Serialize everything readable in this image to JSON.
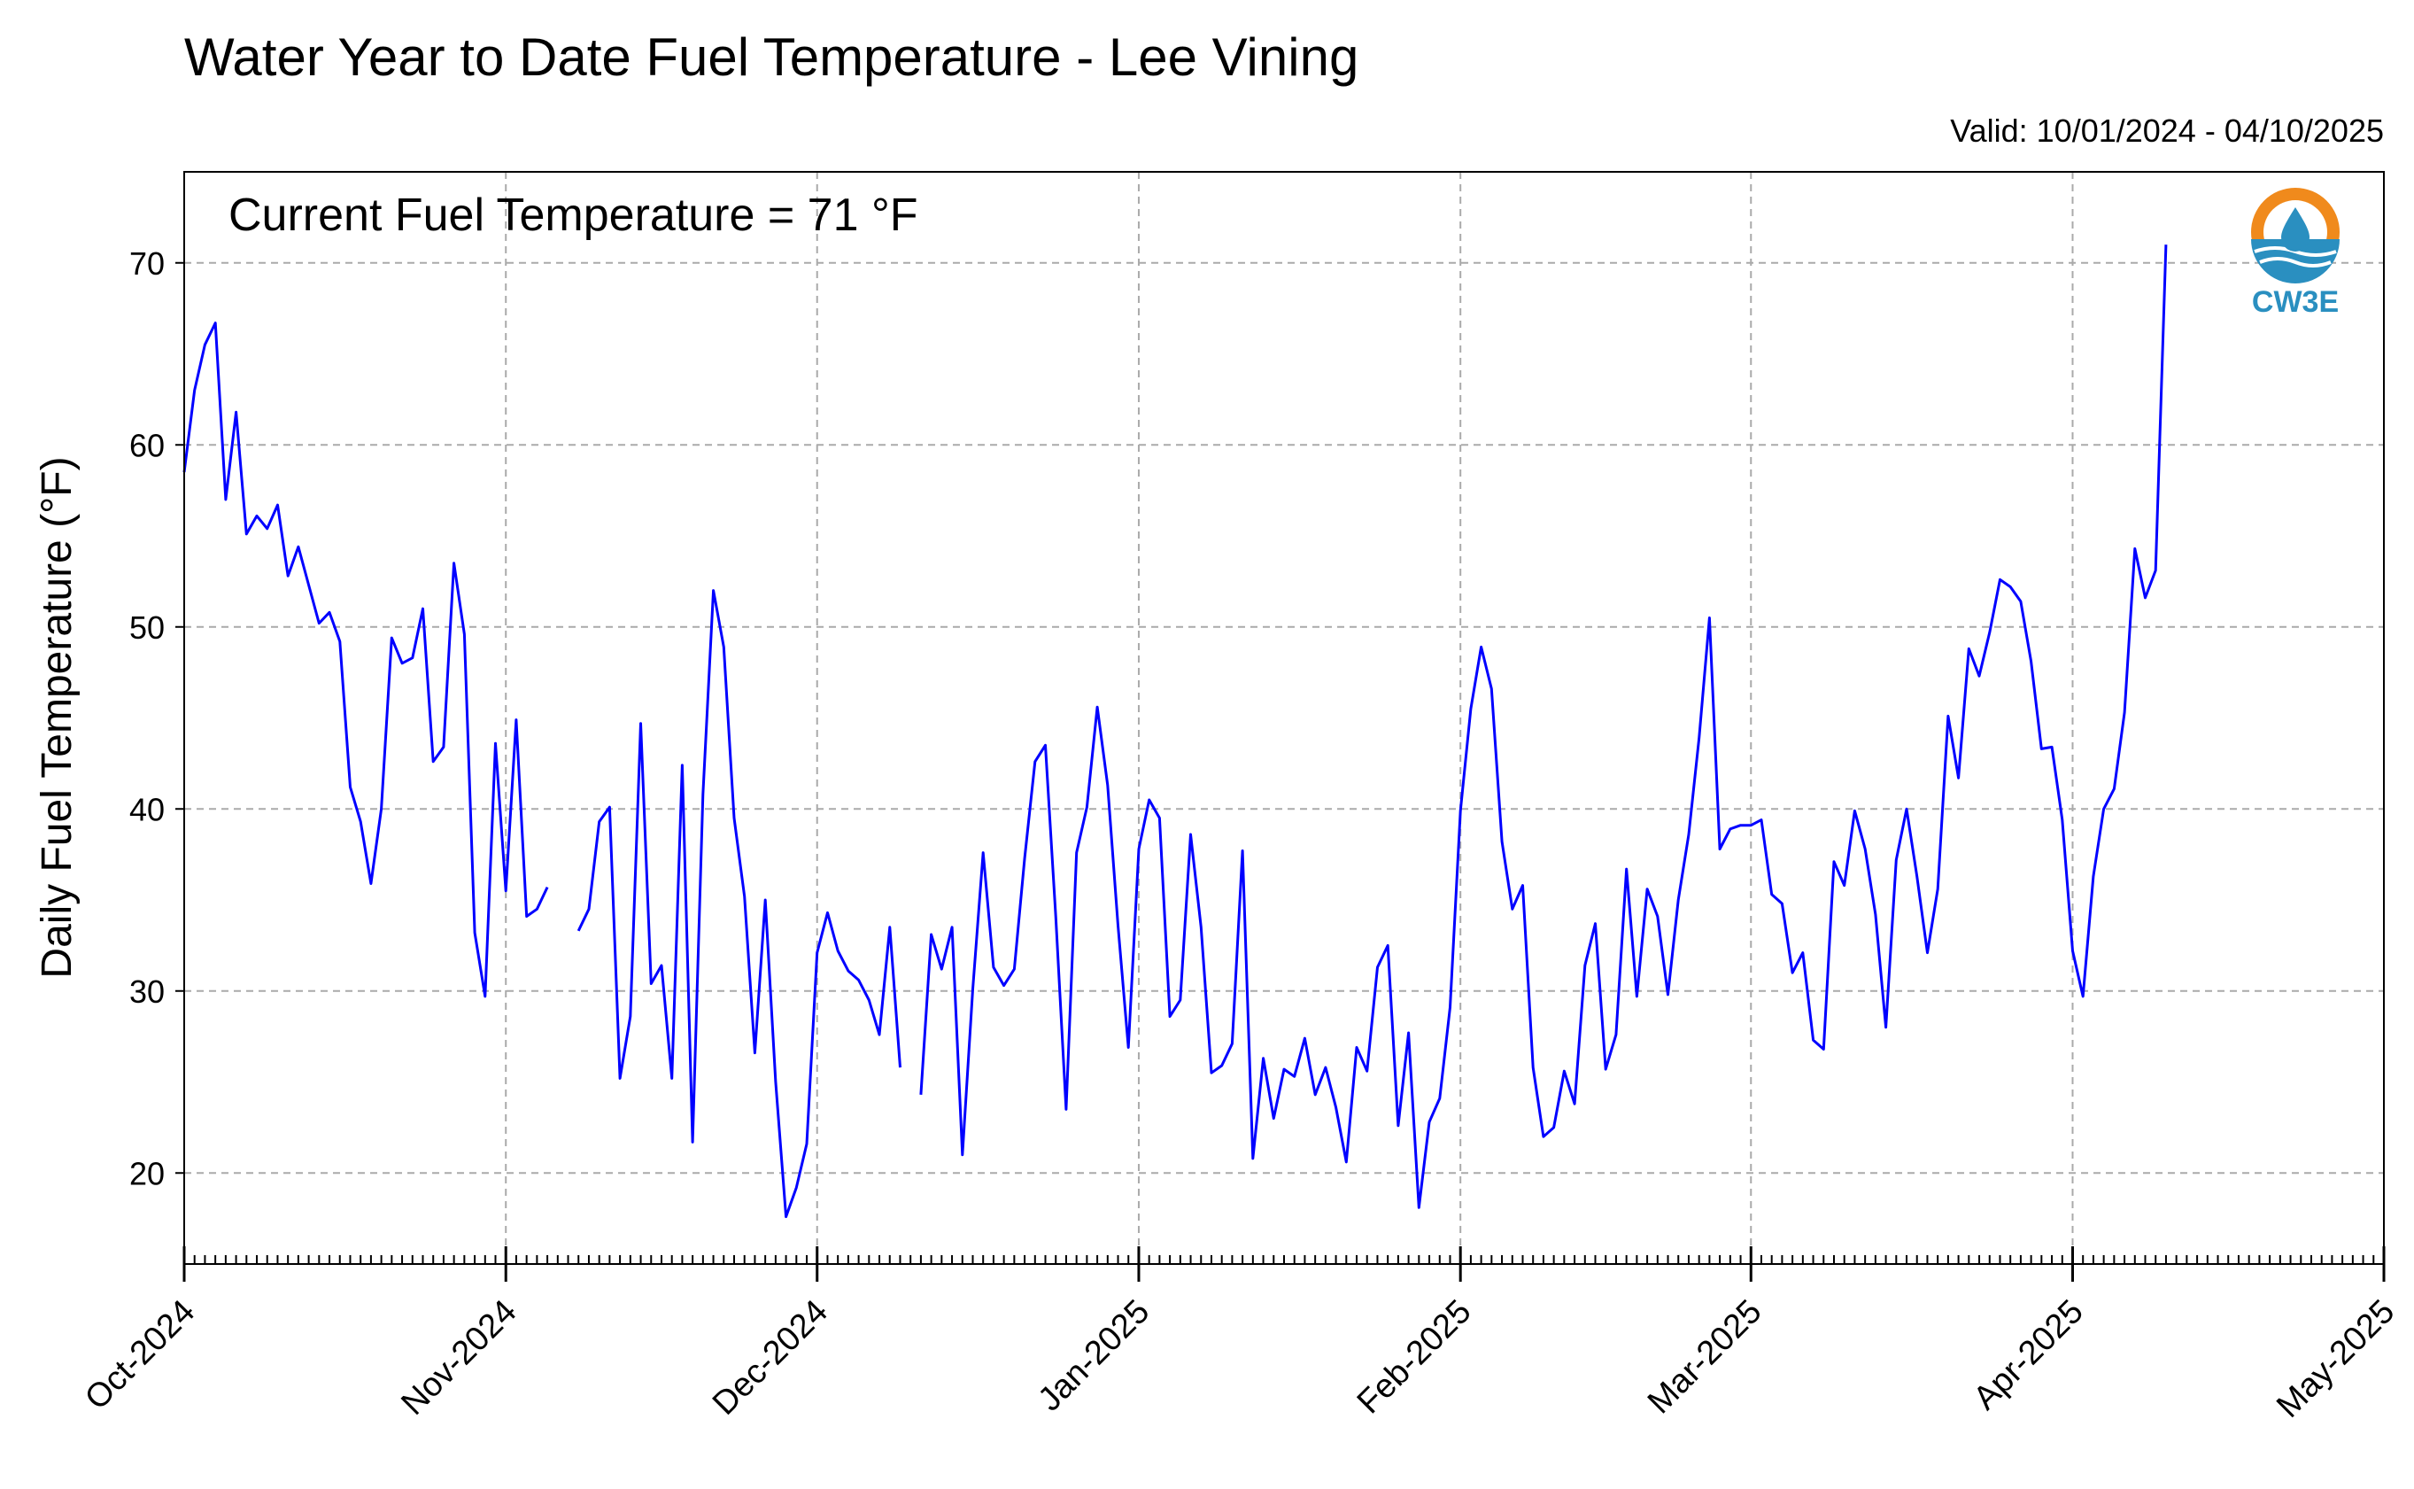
{
  "title": "Water Year to Date Fuel Temperature - Lee Vining",
  "valid": "Valid: 10/01/2024 - 04/10/2025",
  "annotation": "Current Fuel Temperature = 71 °F",
  "logo": {
    "icon": "cw3e-water-drop-logo",
    "text": "CW3E",
    "colors": {
      "orange": "#f08a1c",
      "blue": "#2a8fc0"
    }
  },
  "chart_data": {
    "type": "line",
    "ylabel": "Daily Fuel Temperature (°F)",
    "xlabel": "",
    "xlim": [
      "2024-10-01",
      "2025-05-01"
    ],
    "ylim": [
      15,
      75
    ],
    "yticks": [
      20,
      30,
      40,
      50,
      60,
      70
    ],
    "xtick_labels": [
      "Oct-2024",
      "Nov-2024",
      "Dec-2024",
      "Jan-2025",
      "Feb-2025",
      "Mar-2025",
      "Apr-2025",
      "May-2025"
    ],
    "xtick_dates": [
      "2024-10-01",
      "2024-11-01",
      "2024-12-01",
      "2025-01-01",
      "2025-02-01",
      "2025-03-01",
      "2025-04-01",
      "2025-05-01"
    ],
    "grid": true,
    "grid_style": "dashed",
    "line_color": "#0000ff",
    "start_date": "2024-10-01",
    "series": [
      {
        "values": [
          58.5,
          63,
          65.5,
          66.7,
          57,
          61.8,
          55.1,
          56.1,
          55.4,
          56.7,
          52.8,
          54.4,
          52.3,
          50.2,
          50.8,
          49.2,
          41.2,
          39.3,
          35.9,
          40.0,
          49.4,
          48.0,
          48.3,
          51.0,
          42.6,
          43.4,
          53.5,
          49.6,
          33.2,
          29.7,
          43.6,
          35.5,
          44.9,
          34.1,
          34.5,
          35.7,
          null,
          null,
          33.3,
          34.5,
          39.3,
          40.1,
          25.2,
          28.6,
          44.7,
          30.4,
          31.4,
          25.2,
          42.4,
          21.7,
          40.8,
          52.0,
          48.9,
          39.5,
          35.2,
          26.6,
          35.0,
          25.0,
          17.6,
          19.2,
          21.6,
          32.1,
          34.3,
          32.2,
          31.1,
          30.6,
          29.5,
          27.6,
          33.5,
          25.8,
          null,
          24.3,
          33.1,
          31.2,
          33.5,
          21.0,
          30.1,
          37.6,
          31.3,
          30.3,
          31.2,
          37.3,
          42.6,
          43.5,
          34.1,
          23.5,
          37.6,
          40.1,
          45.6,
          41.3,
          33.6,
          26.9,
          37.8,
          40.5,
          39.5,
          28.6,
          29.5,
          38.6,
          33.5,
          25.5,
          25.9,
          27.1,
          37.7,
          20.8,
          26.3,
          23.0,
          25.7,
          25.3,
          27.4,
          24.3,
          25.8,
          23.6,
          20.6,
          26.9,
          25.6,
          31.3,
          32.5,
          22.6,
          27.7,
          18.1,
          22.8,
          24.1,
          29.1,
          39.9,
          45.5,
          48.9,
          46.6,
          38.2,
          34.5,
          35.8,
          25.8,
          22.0,
          22.5,
          25.6,
          23.8,
          31.4,
          33.7,
          25.7,
          27.6,
          36.7,
          29.7,
          35.6,
          34.1,
          29.8,
          35.0,
          38.6,
          43.9,
          50.5,
          37.8,
          38.9,
          39.1,
          39.1,
          39.4,
          35.3,
          34.8,
          31.0,
          32.1,
          27.3,
          26.8,
          37.1,
          35.8,
          39.9,
          37.8,
          34.2,
          28.0,
          37.2,
          40.0,
          36.3,
          32.1,
          35.6,
          45.1,
          41.7,
          48.8,
          47.3,
          49.7,
          52.6,
          52.2,
          51.4,
          48.1,
          43.3,
          43.4,
          39.4,
          32.2,
          29.7,
          36.3,
          40.0,
          41.1,
          45.3,
          54.3,
          51.6,
          53.1,
          71.0
        ]
      }
    ]
  }
}
